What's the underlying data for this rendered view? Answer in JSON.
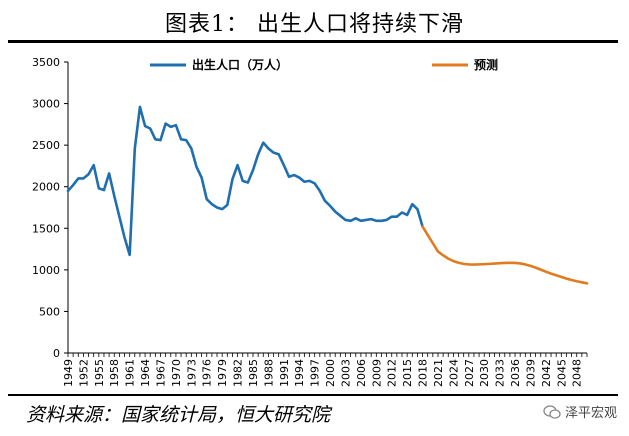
{
  "header": {
    "title": "图表1：  出生人口将持续下滑"
  },
  "footer": {
    "source": "资料来源：国家统计局，恒大研究院",
    "watermark": "泽平宏观"
  },
  "chart_data": {
    "type": "line",
    "title": "图表1：  出生人口将持续下滑",
    "xlabel": "",
    "ylabel": "",
    "ylim": [
      0,
      3500
    ],
    "yticks": [
      0,
      500,
      1000,
      1500,
      2000,
      2500,
      3000,
      3500
    ],
    "xticks": [
      "1949",
      "1952",
      "1955",
      "1958",
      "1961",
      "1964",
      "1967",
      "1970",
      "1973",
      "1976",
      "1979",
      "1982",
      "1985",
      "1988",
      "1991",
      "1994",
      "1997",
      "2000",
      "2003",
      "2006",
      "2009",
      "2012",
      "2015",
      "2018",
      "2021",
      "2024",
      "2027",
      "2030",
      "2033",
      "2036",
      "2039",
      "2042",
      "2045",
      "2048"
    ],
    "xlim": [
      1949,
      2050
    ],
    "grid": false,
    "legend": {
      "placement": "top",
      "entries": [
        "出生人口（万人）",
        "预测"
      ]
    },
    "series": [
      {
        "name": "出生人口（万人）",
        "color": "#1f6fb0",
        "x": [
          1949,
          1950,
          1951,
          1952,
          1953,
          1954,
          1955,
          1956,
          1957,
          1958,
          1959,
          1960,
          1961,
          1962,
          1963,
          1964,
          1965,
          1966,
          1967,
          1968,
          1969,
          1970,
          1971,
          1972,
          1973,
          1974,
          1975,
          1976,
          1977,
          1978,
          1979,
          1980,
          1981,
          1982,
          1983,
          1984,
          1985,
          1986,
          1987,
          1988,
          1989,
          1990,
          1991,
          1992,
          1993,
          1994,
          1995,
          1996,
          1997,
          1998,
          1999,
          2000,
          2001,
          2002,
          2003,
          2004,
          2005,
          2006,
          2007,
          2008,
          2009,
          2010,
          2011,
          2012,
          2013,
          2014,
          2015,
          2016,
          2017,
          2018
        ],
        "values": [
          1950,
          2020,
          2100,
          2100,
          2150,
          2260,
          1980,
          1960,
          2160,
          1890,
          1640,
          1390,
          1180,
          2460,
          2960,
          2730,
          2700,
          2570,
          2560,
          2760,
          2720,
          2740,
          2570,
          2560,
          2460,
          2240,
          2110,
          1850,
          1790,
          1750,
          1730,
          1780,
          2090,
          2260,
          2070,
          2050,
          2200,
          2390,
          2530,
          2460,
          2410,
          2390,
          2260,
          2120,
          2140,
          2110,
          2060,
          2070,
          2040,
          1950,
          1830,
          1770,
          1700,
          1650,
          1600,
          1590,
          1620,
          1590,
          1600,
          1610,
          1590,
          1590,
          1600,
          1640,
          1640,
          1690,
          1660,
          1790,
          1730,
          1520
        ]
      },
      {
        "name": "预测",
        "color": "#e07b20",
        "x": [
          2018,
          2019,
          2020,
          2021,
          2022,
          2023,
          2024,
          2025,
          2026,
          2027,
          2028,
          2029,
          2030,
          2031,
          2032,
          2033,
          2034,
          2035,
          2036,
          2037,
          2038,
          2039,
          2040,
          2041,
          2042,
          2043,
          2044,
          2045,
          2046,
          2047,
          2048,
          2049,
          2050
        ],
        "values": [
          1520,
          1420,
          1320,
          1220,
          1175,
          1135,
          1105,
          1085,
          1072,
          1065,
          1064,
          1066,
          1068,
          1072,
          1076,
          1080,
          1083,
          1085,
          1083,
          1077,
          1065,
          1048,
          1027,
          1003,
          978,
          955,
          935,
          915,
          895,
          878,
          863,
          850,
          838
        ]
      }
    ]
  }
}
